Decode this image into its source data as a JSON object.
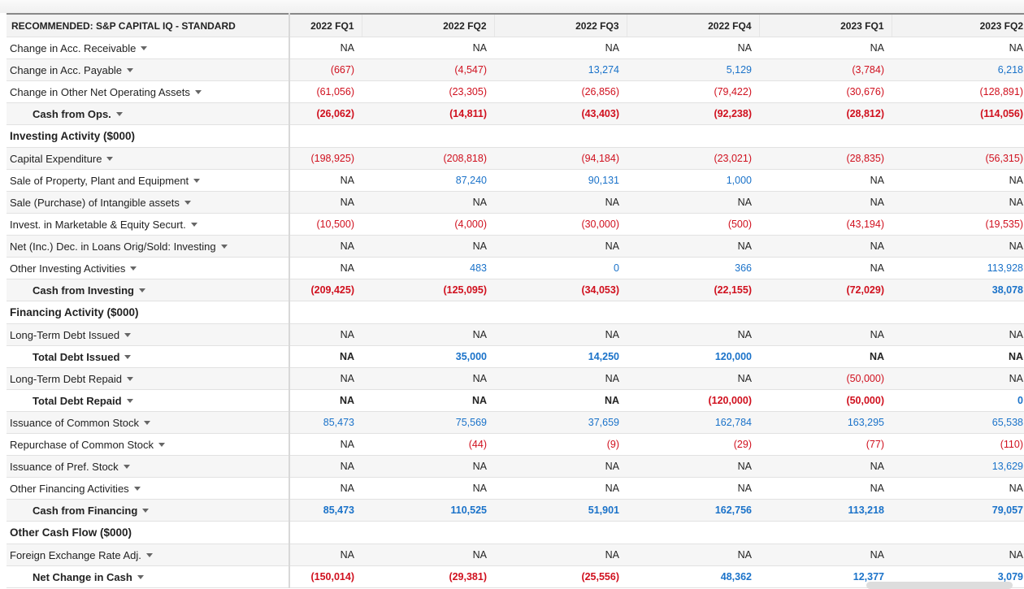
{
  "header": {
    "label": "RECOMMENDED: S&P CAPITAL IQ - STANDARD",
    "periods": [
      "2022 FQ1",
      "2022 FQ2",
      "2022 FQ3",
      "2022 FQ4",
      "2023 FQ1",
      "2023 FQ2"
    ]
  },
  "colors": {
    "negative": "#d0101e",
    "positive": "#1a72c9",
    "neutral": "#222222"
  },
  "rows": [
    {
      "label": "Change in Acc. Receivable",
      "values": [
        "NA",
        "NA",
        "NA",
        "NA",
        "NA",
        "NA"
      ]
    },
    {
      "label": "Change in Acc. Payable",
      "values": [
        "(667)",
        "(4,547)",
        "13,274",
        "5,129",
        "(3,784)",
        "6,218"
      ]
    },
    {
      "label": "Change in Other Net Operating Assets",
      "values": [
        "(61,056)",
        "(23,305)",
        "(26,856)",
        "(79,422)",
        "(30,676)",
        "(128,891)"
      ]
    },
    {
      "label": "Cash from Ops.",
      "bold": true,
      "values": [
        "(26,062)",
        "(14,811)",
        "(43,403)",
        "(92,238)",
        "(28,812)",
        "(114,056)"
      ]
    },
    {
      "label": "Investing Activity ($000)",
      "section": true
    },
    {
      "label": "Capital Expenditure",
      "values": [
        "(198,925)",
        "(208,818)",
        "(94,184)",
        "(23,021)",
        "(28,835)",
        "(56,315)"
      ]
    },
    {
      "label": "Sale of Property, Plant and Equipment",
      "values": [
        "NA",
        "87,240",
        "90,131",
        "1,000",
        "NA",
        "NA"
      ]
    },
    {
      "label": "Sale (Purchase) of Intangible assets",
      "values": [
        "NA",
        "NA",
        "NA",
        "NA",
        "NA",
        "NA"
      ]
    },
    {
      "label": "Invest. in Marketable & Equity Securt.",
      "values": [
        "(10,500)",
        "(4,000)",
        "(30,000)",
        "(500)",
        "(43,194)",
        "(19,535)"
      ]
    },
    {
      "label": "Net (Inc.) Dec. in Loans Orig/Sold: Investing",
      "values": [
        "NA",
        "NA",
        "NA",
        "NA",
        "NA",
        "NA"
      ]
    },
    {
      "label": "Other Investing Activities",
      "values": [
        "NA",
        "483",
        "0",
        "366",
        "NA",
        "113,928"
      ]
    },
    {
      "label": "Cash from Investing",
      "bold": true,
      "values": [
        "(209,425)",
        "(125,095)",
        "(34,053)",
        "(22,155)",
        "(72,029)",
        "38,078"
      ]
    },
    {
      "label": "Financing Activity ($000)",
      "section": true
    },
    {
      "label": "Long-Term Debt Issued",
      "values": [
        "NA",
        "NA",
        "NA",
        "NA",
        "NA",
        "NA"
      ]
    },
    {
      "label": "Total Debt Issued",
      "bold": true,
      "values": [
        "NA",
        "35,000",
        "14,250",
        "120,000",
        "NA",
        "NA"
      ]
    },
    {
      "label": "Long-Term Debt Repaid",
      "values": [
        "NA",
        "NA",
        "NA",
        "NA",
        "(50,000)",
        "NA"
      ]
    },
    {
      "label": "Total Debt Repaid",
      "bold": true,
      "values": [
        "NA",
        "NA",
        "NA",
        "(120,000)",
        "(50,000)",
        "0"
      ]
    },
    {
      "label": "Issuance of Common Stock",
      "values": [
        "85,473",
        "75,569",
        "37,659",
        "162,784",
        "163,295",
        "65,538"
      ]
    },
    {
      "label": "Repurchase of Common Stock",
      "values": [
        "NA",
        "(44)",
        "(9)",
        "(29)",
        "(77)",
        "(110)"
      ]
    },
    {
      "label": "Issuance of Pref. Stock",
      "values": [
        "NA",
        "NA",
        "NA",
        "NA",
        "NA",
        "13,629"
      ]
    },
    {
      "label": "Other Financing Activities",
      "values": [
        "NA",
        "NA",
        "NA",
        "NA",
        "NA",
        "NA"
      ]
    },
    {
      "label": "Cash from Financing",
      "bold": true,
      "values": [
        "85,473",
        "110,525",
        "51,901",
        "162,756",
        "113,218",
        "79,057"
      ]
    },
    {
      "label": "Other Cash Flow ($000)",
      "section": true
    },
    {
      "label": "Foreign Exchange Rate Adj.",
      "values": [
        "NA",
        "NA",
        "NA",
        "NA",
        "NA",
        "NA"
      ]
    },
    {
      "label": "Net Change in Cash",
      "bold": true,
      "values": [
        "(150,014)",
        "(29,381)",
        "(25,556)",
        "48,362",
        "12,377",
        "3,079"
      ]
    }
  ]
}
